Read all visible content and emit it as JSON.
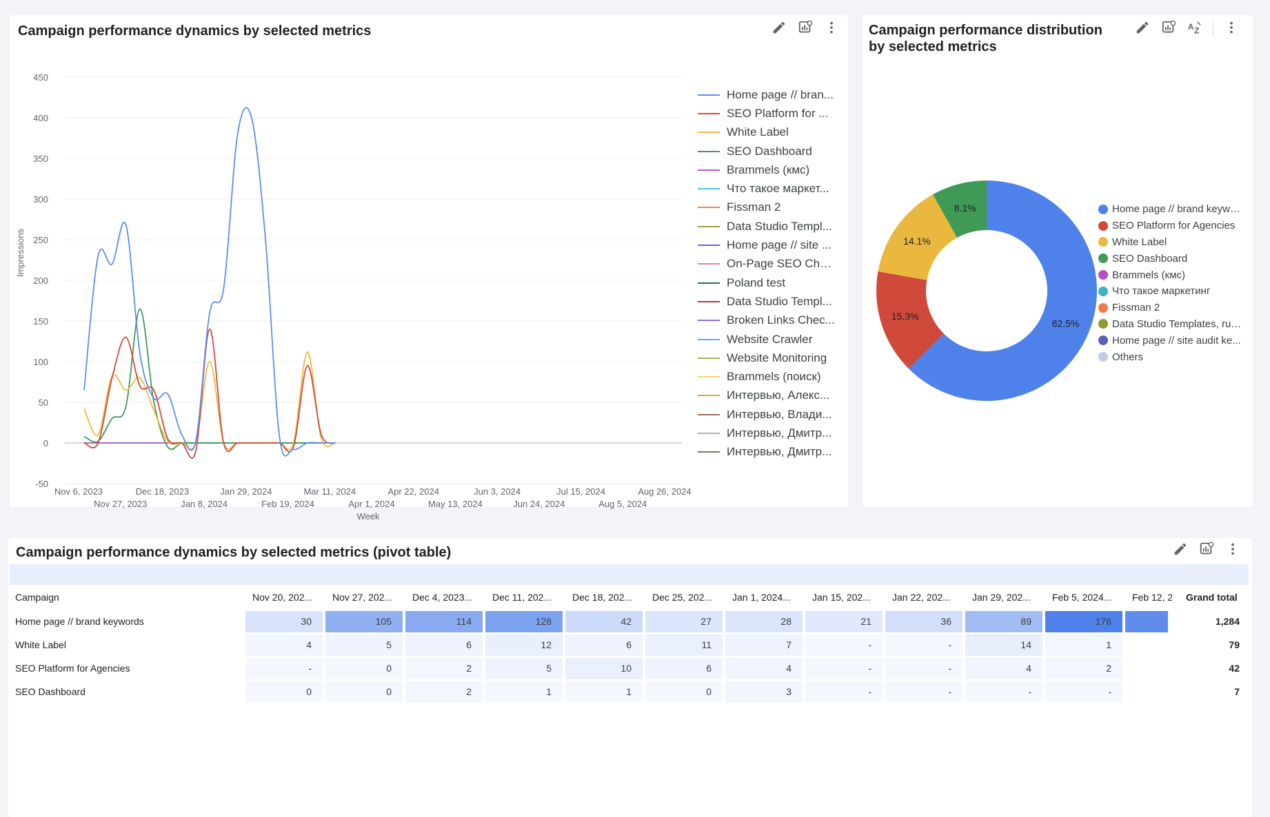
{
  "line_card": {
    "title": "Campaign performance dynamics by selected metrics",
    "icons": [
      "pencil-icon",
      "chart-settings-icon",
      "more-vert-icon"
    ]
  },
  "donut_card": {
    "title_line1": "Campaign performance distribution",
    "title_line2": "by selected metrics",
    "icons": [
      "pencil-icon",
      "chart-settings-icon",
      "sort-az-icon",
      "more-vert-icon"
    ]
  },
  "pivot_card": {
    "title": "Campaign performance dynamics by selected metrics (pivot table)",
    "band_text": "Week / Impr...",
    "row_header": "Campaign",
    "columns": [
      "Nov 20, 202...",
      "Nov 27, 202...",
      "Dec 4, 2023...",
      "Dec 11, 202...",
      "Dec 18, 202...",
      "Dec 25, 202...",
      "Jan 1, 2024...",
      "Jan 15, 202...",
      "Jan 22, 202...",
      "Jan 29, 202...",
      "Feb 5, 2024...",
      "Feb 12, 2"
    ],
    "grand_total_label": "Grand total",
    "rows": [
      {
        "label": "Home page // brand keywords",
        "values": [
          "30",
          "105",
          "114",
          "128",
          "42",
          "27",
          "28",
          "21",
          "36",
          "89",
          "176",
          ""
        ],
        "total": "1,284"
      },
      {
        "label": "White Label",
        "values": [
          "4",
          "5",
          "6",
          "12",
          "6",
          "11",
          "7",
          "-",
          "-",
          "14",
          "1",
          ""
        ],
        "total": "79"
      },
      {
        "label": "SEO Platform for Agencies",
        "values": [
          "-",
          "0",
          "2",
          "5",
          "10",
          "6",
          "4",
          "-",
          "-",
          "4",
          "2",
          ""
        ],
        "total": "42"
      },
      {
        "label": "SEO Dashboard",
        "values": [
          "0",
          "0",
          "2",
          "1",
          "1",
          "0",
          "3",
          "-",
          "-",
          "-",
          "-",
          ""
        ],
        "total": "7"
      }
    ],
    "heat_levels": [
      [
        0.17,
        0.6,
        0.65,
        0.73,
        0.24,
        0.15,
        0.16,
        0.12,
        0.2,
        0.5,
        1.0,
        0.9
      ],
      [
        0.02,
        0.03,
        0.03,
        0.07,
        0.03,
        0.06,
        0.04,
        0.0,
        0.0,
        0.08,
        0.01,
        0.0
      ],
      [
        0.0,
        0.0,
        0.01,
        0.03,
        0.06,
        0.03,
        0.02,
        0.0,
        0.0,
        0.02,
        0.01,
        0.0
      ],
      [
        0.0,
        0.0,
        0.01,
        0.0,
        0.0,
        0.0,
        0.02,
        0.0,
        0.0,
        0.0,
        0.0,
        0.0
      ]
    ]
  },
  "chart_data": [
    {
      "type": "line",
      "ylabel": "Impressions",
      "xlabel": "Week",
      "ylim": [
        -50,
        450
      ],
      "yticks": [
        "450",
        "400",
        "350",
        "300",
        "250",
        "200",
        "150",
        "100",
        "50",
        "0",
        "-50"
      ],
      "xticks_top": [
        "Nov 6, 2023",
        "Dec 18, 2023",
        "Jan 29, 2024",
        "Mar 11, 2024",
        "Apr 22, 2024",
        "Jun 3, 2024",
        "Jul 15, 2024",
        "Aug 26, 2024"
      ],
      "xticks_bottom": [
        "Nov 27, 2023",
        "Jan 8, 2024",
        "Feb 19, 2024",
        "Apr 1, 2024",
        "May 13, 2024",
        "Jun 24, 2024",
        "Aug 5, 2024"
      ],
      "x_weeks": 42,
      "series": [
        {
          "name": "Home page // bran...",
          "color": "#5b8def",
          "x": [
            0,
            1,
            2,
            3,
            4,
            5,
            6,
            7,
            8,
            9,
            10,
            11,
            12,
            13,
            14,
            15,
            16,
            17,
            18
          ],
          "values": [
            65,
            230,
            220,
            268,
            110,
            55,
            60,
            10,
            2,
            160,
            190,
            380,
            400,
            250,
            8,
            -8,
            0,
            0,
            0
          ]
        },
        {
          "name": "SEO Platform for ...",
          "color": "#d04a3c",
          "x": [
            0,
            1,
            2,
            3,
            4,
            5,
            6,
            7,
            8,
            9,
            10,
            11,
            12,
            13,
            14,
            15,
            16,
            17,
            18
          ],
          "values": [
            0,
            0,
            80,
            130,
            70,
            65,
            5,
            0,
            -10,
            140,
            0,
            0,
            0,
            0,
            0,
            -5,
            95,
            10,
            0
          ]
        },
        {
          "name": "White Label",
          "color": "#efb93f",
          "x": [
            0,
            1,
            2,
            3,
            4,
            5,
            6,
            7,
            8,
            9,
            10,
            11,
            12,
            13,
            14,
            15,
            16,
            17,
            18
          ],
          "values": [
            42,
            10,
            82,
            65,
            80,
            40,
            2,
            0,
            0,
            100,
            0,
            0,
            0,
            0,
            0,
            0,
            112,
            5,
            0
          ]
        },
        {
          "name": "SEO Dashboard",
          "color": "#3f9a56",
          "x": [
            0,
            1,
            2,
            3,
            4,
            5,
            6,
            7,
            8,
            9,
            10,
            11,
            12,
            13,
            14,
            15,
            16,
            17,
            18
          ],
          "values": [
            8,
            2,
            30,
            45,
            165,
            50,
            -5,
            0,
            0,
            0,
            0,
            0,
            0,
            0,
            0,
            0,
            0,
            0,
            0
          ]
        },
        {
          "name": "Brammels (кмс)",
          "color": "#b55bc5",
          "x": [
            0,
            18
          ],
          "values": [
            0,
            0
          ]
        },
        {
          "name": "Что такое маркет...",
          "color": "#4ebbe0",
          "x": [
            0,
            18
          ],
          "values": [
            0,
            0
          ]
        },
        {
          "name": "Fissman 2",
          "color": "#f0845a",
          "x": [
            0,
            18
          ],
          "values": [
            0,
            0
          ]
        },
        {
          "name": "Data Studio Templ...",
          "color": "#9aa13e",
          "x": [
            0,
            18
          ],
          "values": [
            0,
            0
          ]
        },
        {
          "name": "Home page // site ...",
          "color": "#6b63c6",
          "x": [
            0,
            18
          ],
          "values": [
            0,
            0
          ]
        },
        {
          "name": "On-Page SEO Che...",
          "color": "#e8829c",
          "x": [
            0,
            18
          ],
          "values": [
            0,
            0
          ]
        },
        {
          "name": "Poland test",
          "color": "#2e6b4f",
          "x": [
            0,
            18
          ],
          "values": [
            0,
            0
          ]
        },
        {
          "name": "Data Studio Templ...",
          "color": "#b0334a",
          "x": [
            0,
            18
          ],
          "values": [
            0,
            0
          ]
        },
        {
          "name": "Broken Links Chec...",
          "color": "#8c6bcf",
          "x": [
            0,
            18
          ],
          "values": [
            0,
            0
          ]
        },
        {
          "name": "Website Crawler",
          "color": "#5aa6ef",
          "x": [
            0,
            18
          ],
          "values": [
            0,
            0
          ]
        },
        {
          "name": "Website Monitoring",
          "color": "#a6b94f",
          "x": [
            0,
            18
          ],
          "values": [
            0,
            0
          ]
        },
        {
          "name": "Brammels (поиск)",
          "color": "#f6d66a",
          "x": [
            0,
            18
          ],
          "values": [
            0,
            0
          ]
        },
        {
          "name": "Интервью, Алекс...",
          "color": "#e89a3c",
          "x": [
            0,
            18
          ],
          "values": [
            0,
            0
          ]
        },
        {
          "name": "Интервью, Влади...",
          "color": "#9a6a5a",
          "x": [
            0,
            18
          ],
          "values": [
            0,
            0
          ]
        },
        {
          "name": "Интервью, Дмитр...",
          "color": "#b0b0b0",
          "x": [
            0,
            18
          ],
          "values": [
            0,
            0
          ]
        },
        {
          "name": "Интервью, Дмитр...",
          "color": "#6d7a5a",
          "x": [
            0,
            18
          ],
          "values": [
            0,
            0
          ]
        }
      ]
    },
    {
      "type": "pie",
      "donut": true,
      "slices": [
        {
          "label": "Home page // brand keywo...",
          "value": 62.5,
          "pct_label": "62.5%",
          "color": "#4f81ea"
        },
        {
          "label": "SEO Platform for Agencies",
          "value": 15.3,
          "pct_label": "15.3%",
          "color": "#cf4a3a"
        },
        {
          "label": "White Label",
          "value": 14.1,
          "pct_label": "14.1%",
          "color": "#ebb83f"
        },
        {
          "label": "SEO Dashboard",
          "value": 8.1,
          "pct_label": "8.1%",
          "color": "#3f9a56"
        }
      ],
      "legend": [
        {
          "label": "Home page // brand keywo...",
          "color": "#4f81ea"
        },
        {
          "label": "SEO Platform for Agencies",
          "color": "#cf4a3a"
        },
        {
          "label": "White Label",
          "color": "#ebb83f"
        },
        {
          "label": "SEO Dashboard",
          "color": "#3f9a56"
        },
        {
          "label": "Brammels (кмс)",
          "color": "#b44ec2"
        },
        {
          "label": "Что такое маркетинг",
          "color": "#3fb3c4"
        },
        {
          "label": "Fissman 2",
          "color": "#f2784f"
        },
        {
          "label": "Data Studio Templates, ru, ...",
          "color": "#8f9a2e"
        },
        {
          "label": "Home page // site audit ke...",
          "color": "#5c5fb8"
        },
        {
          "label": "Others",
          "color": "#c5cbe3"
        }
      ]
    }
  ]
}
